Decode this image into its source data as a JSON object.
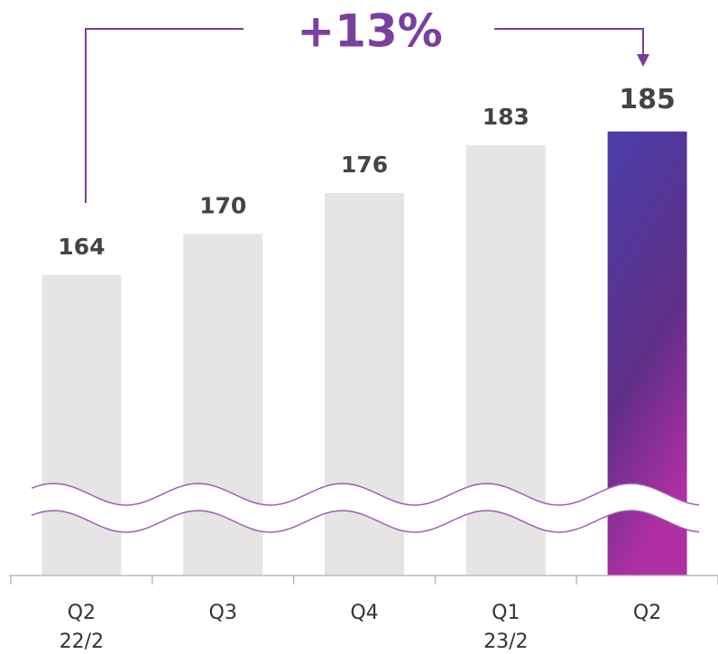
{
  "chart_data": {
    "type": "bar",
    "annotation": "+13%",
    "categories": [
      "Q2\n22/2",
      "Q3",
      "Q4",
      "Q1\n23/2",
      "Q2"
    ],
    "values": [
      164,
      170,
      176,
      183,
      185
    ],
    "color": "#e6e4e5",
    "highlight_index": 4,
    "highlight_color": [
      "#4a3eab",
      "#b02fa2"
    ],
    "ylim": [
      120,
      195
    ]
  }
}
